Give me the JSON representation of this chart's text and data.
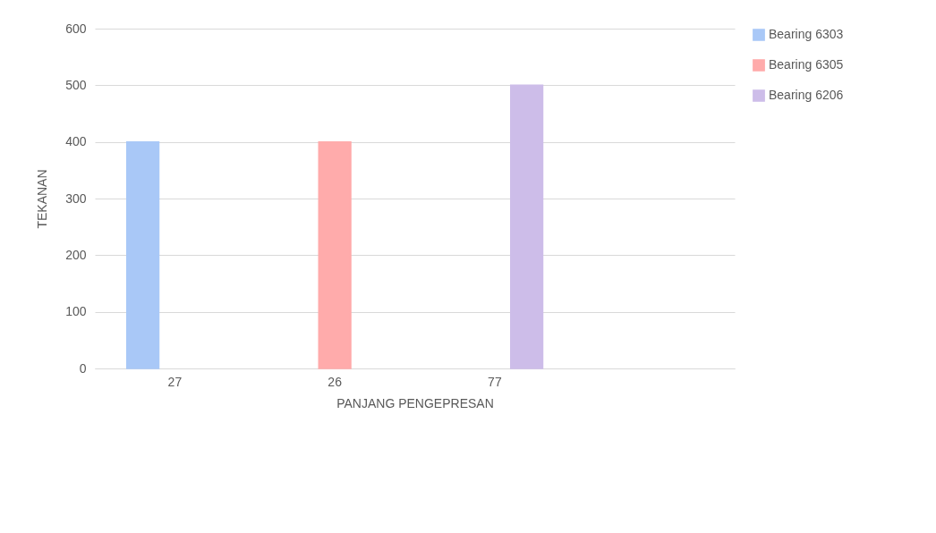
{
  "chart_data": {
    "type": "bar",
    "xlabel": "PANJANG PENGEPRESAN",
    "ylabel": "TEKANAN",
    "categories": [
      "27",
      "26",
      "77",
      null
    ],
    "series": [
      {
        "name": "Bearing 6303",
        "color": "#a9c8f7",
        "values": [
          400,
          null,
          null,
          null
        ]
      },
      {
        "name": "Bearing 6305",
        "color": "#ffabab",
        "values": [
          null,
          400,
          null,
          null
        ]
      },
      {
        "name": "Bearing  6206",
        "color": "#cdbde9",
        "values": [
          null,
          null,
          500,
          null
        ]
      }
    ],
    "ylim": [
      0,
      600
    ],
    "yticks": [
      0,
      100,
      200,
      300,
      400,
      500,
      600
    ],
    "grid": "y",
    "legend": "right"
  }
}
